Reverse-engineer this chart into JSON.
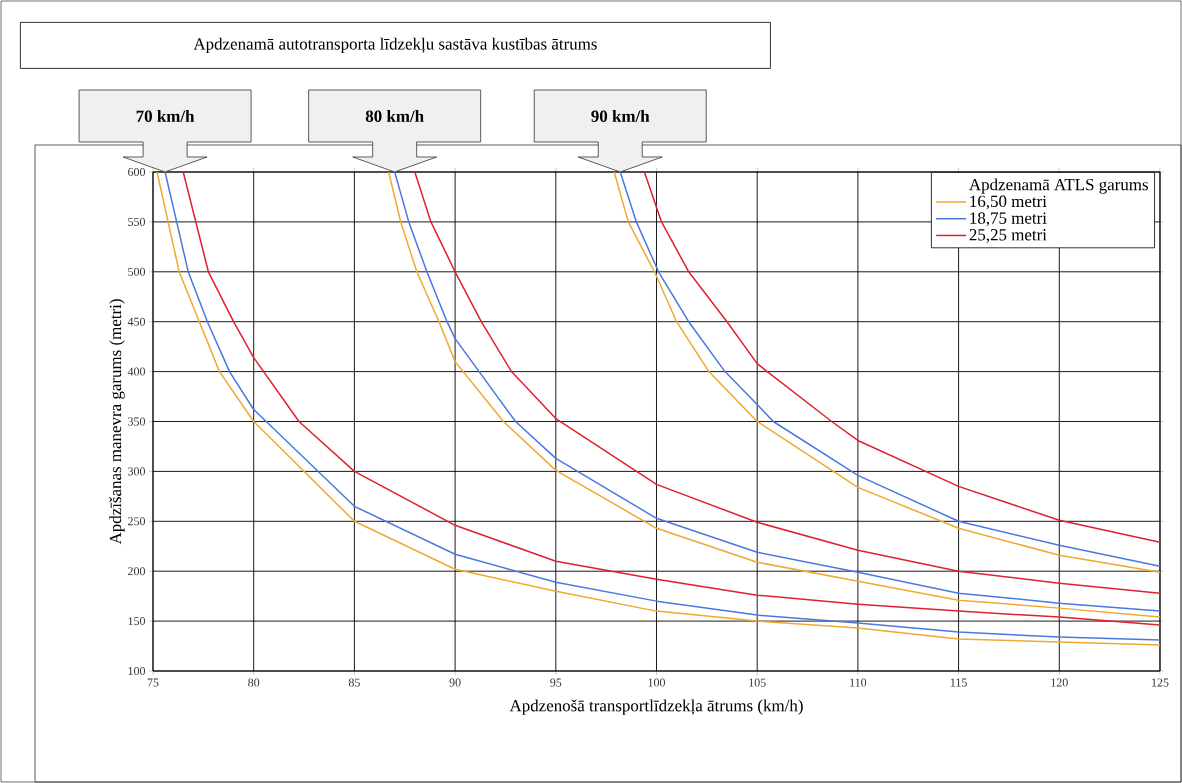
{
  "chart_data": {
    "type": "line",
    "title": "Apdzenamā autotransporta līdzekļu sastāva kustības ātrums",
    "xlabel": "Apdzenošā transportlīdzekļa ātrums (km/h)",
    "ylabel": "Apdzīšanas manevra garums (metri)",
    "legend_title": "Apdzenamā ATLS garums",
    "legend": "top right",
    "grid": true,
    "line_style": "solid",
    "xlim": [
      75,
      125
    ],
    "xticks": [
      75,
      80,
      85,
      90,
      95,
      100,
      105,
      110,
      115,
      120,
      125
    ],
    "ylim": [
      100,
      600
    ],
    "yticks": [
      100,
      150,
      200,
      250,
      300,
      350,
      400,
      450,
      500,
      550,
      600
    ],
    "annotations": [
      {
        "text": "70 km/h",
        "x": 75.6,
        "y": 600
      },
      {
        "text": "80 km/h",
        "x": 87.0,
        "y": 600
      },
      {
        "text": "90 km/h",
        "x": 98.2,
        "y": 600
      }
    ],
    "series": [
      {
        "name": "16,50 metri",
        "color": "#f0a830",
        "x": [
          75.2,
          76.3,
          77.3,
          78.3,
          80,
          85,
          90,
          95,
          100,
          105,
          110,
          115,
          120,
          125
        ],
        "values": [
          600,
          500,
          450,
          400,
          350,
          250,
          202,
          180,
          160,
          150,
          143,
          132,
          129,
          126
        ]
      },
      {
        "name": "18,75 metri",
        "color": "#4a78e0",
        "x": [
          75.6,
          76.75,
          77.7,
          78.8,
          80,
          85,
          90,
          95,
          100,
          105,
          110,
          115,
          120,
          125
        ],
        "values": [
          600,
          500,
          450,
          400,
          362,
          265,
          217,
          189,
          170,
          156,
          148,
          139,
          134,
          131
        ]
      },
      {
        "name": "25,25 metri",
        "color": "#e02030",
        "x": [
          76.5,
          77.75,
          79,
          80,
          82.25,
          85,
          90,
          95,
          100,
          105,
          110,
          115,
          120,
          125
        ],
        "values": [
          600,
          500,
          450,
          414,
          350,
          300,
          246,
          210,
          192,
          176,
          167,
          160,
          154,
          146
        ]
      },
      {
        "color": "#f0a830",
        "x": [
          86.7,
          87.3,
          88.1,
          89.2,
          90,
          92.4,
          95,
          100,
          105,
          110,
          115,
          120,
          125
        ],
        "values": [
          600,
          550,
          500,
          450,
          410,
          350,
          301,
          243,
          209,
          190,
          171,
          163,
          154
        ]
      },
      {
        "color": "#4a78e0",
        "x": [
          87.0,
          87.7,
          88.6,
          89.6,
          90,
          93,
          95,
          100,
          105,
          110,
          115,
          120,
          125
        ],
        "values": [
          600,
          550,
          500,
          450,
          433,
          350,
          313,
          253,
          219,
          199,
          178,
          168,
          160
        ]
      },
      {
        "color": "#e02030",
        "x": [
          88.0,
          88.8,
          90,
          91.3,
          92.8,
          95,
          100,
          105,
          110,
          115,
          120,
          125
        ],
        "values": [
          600,
          550,
          500,
          450,
          400,
          353,
          287,
          249,
          221,
          200,
          188,
          178
        ]
      },
      {
        "color": "#f0a830",
        "x": [
          97.9,
          98.6,
          99.9,
          101.0,
          102.6,
          105,
          110,
          115,
          120,
          125
        ],
        "values": [
          600,
          550,
          500,
          450,
          400,
          350,
          284,
          243,
          216,
          199
        ]
      },
      {
        "color": "#4a78e0",
        "x": [
          98.2,
          99.0,
          100.1,
          101.6,
          103.4,
          105,
          105.8,
          110,
          115,
          120,
          125
        ],
        "values": [
          600,
          550,
          500,
          450,
          400,
          367,
          350,
          296,
          250,
          226,
          205
        ]
      },
      {
        "color": "#e02030",
        "x": [
          99.4,
          100.25,
          101.6,
          103.5,
          105,
          105.5,
          108.7,
          110,
          115,
          120,
          125
        ],
        "values": [
          600,
          550,
          500,
          450,
          408,
          400,
          350,
          331,
          285,
          251,
          229
        ]
      }
    ]
  }
}
